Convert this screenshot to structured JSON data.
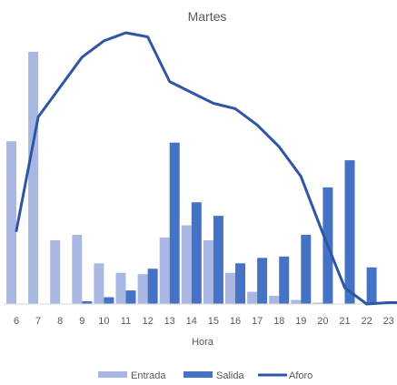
{
  "chart_data": {
    "type": "bar+line",
    "title": "Martes",
    "xlabel": "Hora",
    "ylabel": "",
    "categories": [
      "6",
      "7",
      "8",
      "9",
      "10",
      "11",
      "12",
      "13",
      "14",
      "15",
      "16",
      "17",
      "18",
      "19",
      "20",
      "21",
      "22",
      "23"
    ],
    "series": [
      {
        "name": "Entrada",
        "type": "bar",
        "color": "#a9b8e2",
        "values": [
          60,
          93,
          23.5,
          25.5,
          15,
          11.5,
          11,
          24.5,
          29,
          23.5,
          11.5,
          4.5,
          3,
          1.5,
          0.5,
          0,
          0,
          0
        ]
      },
      {
        "name": "Salida",
        "type": "bar",
        "color": "#4472c4",
        "values": [
          0,
          0,
          0,
          1,
          2.5,
          5,
          13,
          59.5,
          37.5,
          32.5,
          15,
          17,
          17.5,
          25.5,
          43,
          53,
          13.5,
          0
        ]
      },
      {
        "name": "Aforo",
        "type": "line",
        "color": "#2f55a4",
        "values": [
          27,
          69,
          80,
          91,
          97,
          100,
          98.5,
          82,
          78,
          74,
          72,
          66,
          58,
          47,
          26,
          6,
          0,
          0.5
        ]
      }
    ],
    "ylim": [
      0,
      100
    ],
    "grid": false,
    "legend": "bottom"
  }
}
